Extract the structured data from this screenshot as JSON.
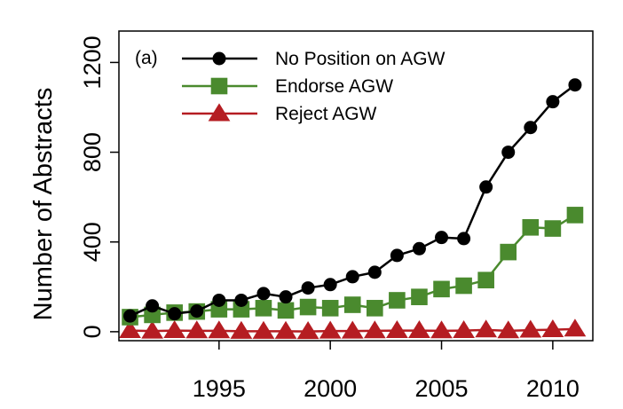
{
  "chart_data": {
    "type": "line",
    "title": "",
    "panel_label": "(a)",
    "xlabel": "",
    "ylabel": "Number of Abstracts",
    "xlim": [
      1990.5,
      2011.8
    ],
    "ylim": [
      -40,
      1340
    ],
    "x_ticks": [
      1995,
      2000,
      2005,
      2010
    ],
    "y_ticks": [
      0,
      400,
      800,
      1200
    ],
    "grid": false,
    "legend_position": "top-left",
    "x": [
      1991,
      1992,
      1993,
      1994,
      1995,
      1996,
      1997,
      1998,
      1999,
      2000,
      2001,
      2002,
      2003,
      2004,
      2005,
      2006,
      2007,
      2008,
      2009,
      2010,
      2011
    ],
    "series": [
      {
        "name": "No Position on AGW",
        "color": "#000000",
        "marker": "circle",
        "values": [
          70,
          115,
          80,
          92,
          140,
          140,
          170,
          155,
          195,
          210,
          245,
          265,
          340,
          370,
          420,
          415,
          645,
          800,
          910,
          1025,
          1100
        ]
      },
      {
        "name": "Endorse AGW",
        "color": "#4a8a2e",
        "marker": "square",
        "values": [
          65,
          75,
          85,
          90,
          100,
          100,
          105,
          95,
          110,
          105,
          120,
          105,
          140,
          155,
          190,
          205,
          230,
          355,
          465,
          460,
          520
        ]
      },
      {
        "name": "Reject AGW",
        "color": "#b51d22",
        "marker": "triangle",
        "values": [
          5,
          3,
          5,
          4,
          4,
          2,
          2,
          2,
          1,
          3,
          3,
          4,
          5,
          5,
          4,
          5,
          8,
          4,
          7,
          9,
          12
        ]
      }
    ]
  }
}
